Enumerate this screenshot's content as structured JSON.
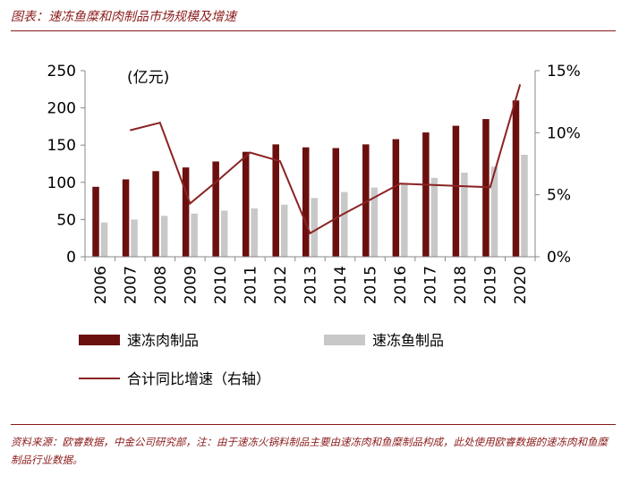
{
  "figure": {
    "title": "图表：速冻鱼糜和肉制品市场规模及增速",
    "source": "资料来源：欧睿数据，中金公司研究部，注：由于速冻火锅料制品主要由速冻肉和鱼糜制品构成，此处使用欧睿数据的速冻肉和鱼糜制品行业数据。"
  },
  "chart_data": {
    "type": "bar",
    "unit_label": "(亿元)",
    "categories": [
      "2006",
      "2007",
      "2008",
      "2009",
      "2010",
      "2011",
      "2012",
      "2013",
      "2014",
      "2015",
      "2016",
      "2017",
      "2018",
      "2019",
      "2020"
    ],
    "series": [
      {
        "name": "速冻肉制品",
        "type": "bar",
        "axis": "left",
        "color": "#6b0f0f",
        "values": [
          94,
          104,
          115,
          120,
          128,
          141,
          151,
          147,
          146,
          151,
          158,
          167,
          176,
          185,
          210
        ]
      },
      {
        "name": "速冻鱼制品",
        "type": "bar",
        "axis": "left",
        "color": "#c8c8c8",
        "values": [
          46,
          50,
          55,
          58,
          62,
          65,
          70,
          79,
          87,
          93,
          98,
          106,
          113,
          121,
          137
        ]
      },
      {
        "name": "合计同比增速（右轴）",
        "type": "line",
        "axis": "right",
        "color": "#8b2323",
        "values": [
          null,
          10.2,
          10.8,
          4.3,
          6.3,
          8.4,
          7.7,
          1.9,
          3.3,
          4.6,
          5.9,
          5.8,
          5.7,
          5.6,
          13.9
        ]
      }
    ],
    "y_left": {
      "min": 0,
      "max": 250,
      "ticks": [
        "0",
        "50",
        "100",
        "150",
        "200",
        "250"
      ]
    },
    "y_right": {
      "min": 0,
      "max": 15,
      "ticks": [
        "0%",
        "5%",
        "10%",
        "15%"
      ]
    },
    "grid": false,
    "legend_position": "bottom"
  }
}
